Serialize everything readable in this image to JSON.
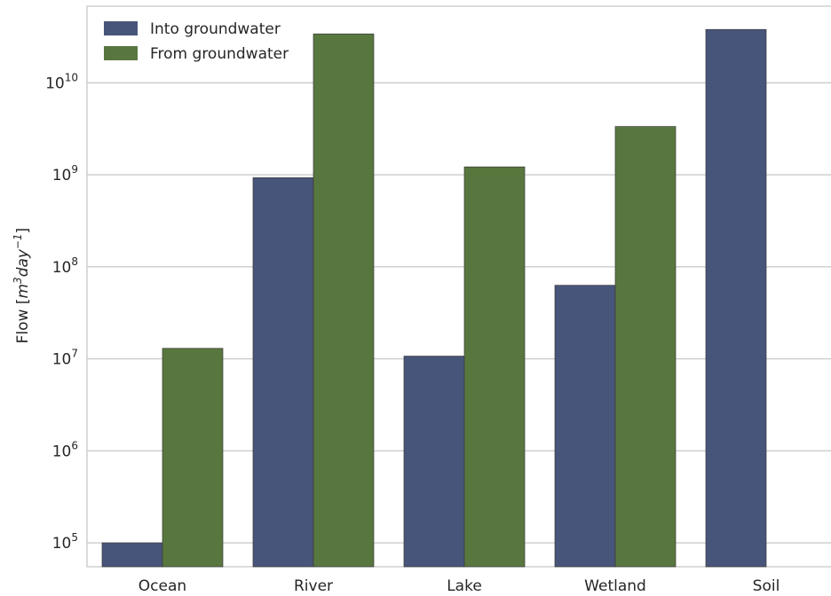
{
  "chart_data": {
    "type": "bar",
    "categories": [
      "Ocean",
      "River",
      "Lake",
      "Wetland",
      "Soil"
    ],
    "series": [
      {
        "name": "Into groundwater",
        "color": "#48557a",
        "values": [
          100000,
          930000000,
          10700000,
          63000000,
          38000000000
        ]
      },
      {
        "name": "From groundwater",
        "color": "#58773f",
        "values": [
          13000000,
          34000000000,
          1220000000,
          3350000000,
          null
        ]
      }
    ],
    "title": "",
    "xlabel": "",
    "ylabel": {
      "main": "Flow [",
      "unit_base": "m",
      "unit_base_sup": "3",
      "unit_per": "day",
      "unit_per_sup": "−1",
      "close": "]"
    },
    "yscale": "log",
    "ylim": [
      55000,
      68000000000
    ],
    "yticks": [
      {
        "base": "10",
        "exp": "5",
        "value": 100000
      },
      {
        "base": "10",
        "exp": "6",
        "value": 1000000
      },
      {
        "base": "10",
        "exp": "7",
        "value": 10000000
      },
      {
        "base": "10",
        "exp": "8",
        "value": 100000000
      },
      {
        "base": "10",
        "exp": "9",
        "value": 1000000000
      },
      {
        "base": "10",
        "exp": "10",
        "value": 10000000000
      }
    ],
    "grid": true,
    "legend": "top-left"
  }
}
